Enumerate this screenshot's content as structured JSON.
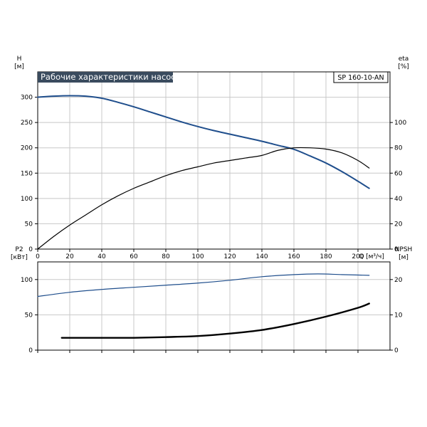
{
  "chart_data": [
    {
      "type": "line",
      "title": "Рабочие характеристики насоса",
      "model": "SP 160-10-AN",
      "xlabel": "Q [м³/ч]",
      "ylabel_left": [
        "H",
        "[м]"
      ],
      "ylabel_right": [
        "eta",
        "[%]"
      ],
      "xlim": [
        0,
        220
      ],
      "ylim_left": [
        0,
        350
      ],
      "ylim_right": [
        0,
        140
      ],
      "x_ticks": [
        0,
        20,
        40,
        60,
        80,
        100,
        120,
        140,
        160,
        180,
        200
      ],
      "y_ticks_left": [
        0,
        50,
        100,
        150,
        200,
        250,
        300
      ],
      "y_ticks_right": [
        0,
        20,
        40,
        60,
        80,
        100
      ],
      "grid": true,
      "series": [
        {
          "axis": "left",
          "color": "#1f4e8c",
          "width": 2,
          "x": [
            0,
            10,
            20,
            30,
            40,
            50,
            60,
            70,
            80,
            90,
            100,
            110,
            120,
            130,
            140,
            150,
            160,
            170,
            180,
            190,
            200,
            207
          ],
          "y": [
            300,
            302,
            303,
            302,
            298,
            290,
            281,
            271,
            261,
            251,
            242,
            234,
            227,
            220,
            213,
            205,
            197,
            184,
            170,
            153,
            134,
            120
          ]
        },
        {
          "axis": "right",
          "color": "#000000",
          "width": 1.2,
          "x": [
            0,
            10,
            20,
            30,
            40,
            50,
            60,
            70,
            80,
            90,
            100,
            110,
            120,
            130,
            140,
            150,
            160,
            170,
            180,
            190,
            200,
            207
          ],
          "y": [
            0,
            10,
            19,
            27,
            35,
            42,
            48,
            53,
            58,
            62,
            65,
            68,
            70,
            72,
            74,
            78,
            80,
            80,
            79,
            76,
            70,
            64
          ]
        }
      ]
    },
    {
      "type": "line",
      "ylabel_left": [
        "P2",
        "[кВт]"
      ],
      "ylabel_right": [
        "NPSH",
        "[м]"
      ],
      "xlim": [
        0,
        220
      ],
      "ylim_left": [
        0,
        125
      ],
      "ylim_right": [
        0,
        25
      ],
      "x_ticks": [
        0,
        20,
        40,
        60,
        80,
        100,
        120,
        140,
        160,
        180,
        200
      ],
      "y_ticks_left": [
        0,
        50,
        100
      ],
      "y_ticks_right": [
        0,
        10,
        20
      ],
      "grid": true,
      "series": [
        {
          "axis": "left",
          "color": "#1f4e8c",
          "width": 1.2,
          "x": [
            0,
            20,
            40,
            60,
            80,
            100,
            120,
            140,
            160,
            175,
            190,
            207
          ],
          "y": [
            76,
            82,
            86,
            89,
            92,
            95,
            99,
            104,
            107,
            108,
            107,
            106
          ]
        },
        {
          "axis": "right",
          "color": "#000000",
          "width": 2.4,
          "x": [
            15,
            30,
            50,
            60,
            80,
            100,
            120,
            140,
            160,
            180,
            200,
            207
          ],
          "y": [
            3.5,
            3.5,
            3.5,
            3.5,
            3.7,
            4.0,
            4.7,
            5.7,
            7.4,
            9.5,
            12.0,
            13.2
          ]
        }
      ]
    }
  ]
}
